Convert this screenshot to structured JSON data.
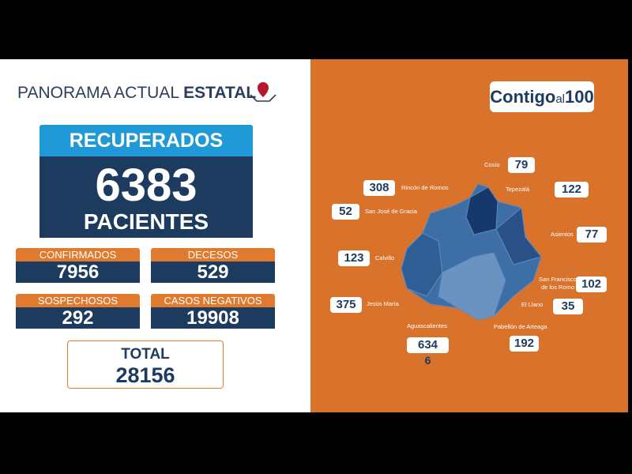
{
  "header": {
    "title_light": "PANORAMA ACTUAL",
    "title_bold": "ESTATAL"
  },
  "recovered": {
    "label": "RECUPERADOS",
    "value": "6383",
    "unit": "PACIENTES"
  },
  "stats": [
    {
      "label": "CONFIRMADOS",
      "value": "7956"
    },
    {
      "label": "DECESOS",
      "value": "529"
    },
    {
      "label": "SOSPECHOSOS",
      "value": "292"
    },
    {
      "label": "CASOS NEGATIVOS",
      "value": "19908"
    }
  ],
  "total": {
    "label": "TOTAL",
    "value": "28156"
  },
  "logo": {
    "main": "Contigo",
    "small": "al",
    "number": "100"
  },
  "municipalities": [
    {
      "name": "Cosío",
      "value": "79"
    },
    {
      "name": "Rincón de Romos",
      "value": "308"
    },
    {
      "name": "Tepezalá",
      "value": "122"
    },
    {
      "name": "San José de Gracia",
      "value": "52"
    },
    {
      "name": "Asientos",
      "value": "77"
    },
    {
      "name": "Calvillo",
      "value": "123"
    },
    {
      "name": "San Francisco de los Romo",
      "value": "102"
    },
    {
      "name": "El Llano",
      "value": "35"
    },
    {
      "name": "Jesús María",
      "value": "375"
    },
    {
      "name": "Aguascalientes",
      "value": "634",
      "value_overflow": "6"
    },
    {
      "name": "Pabellón de Arteaga",
      "value": "192"
    }
  ]
}
